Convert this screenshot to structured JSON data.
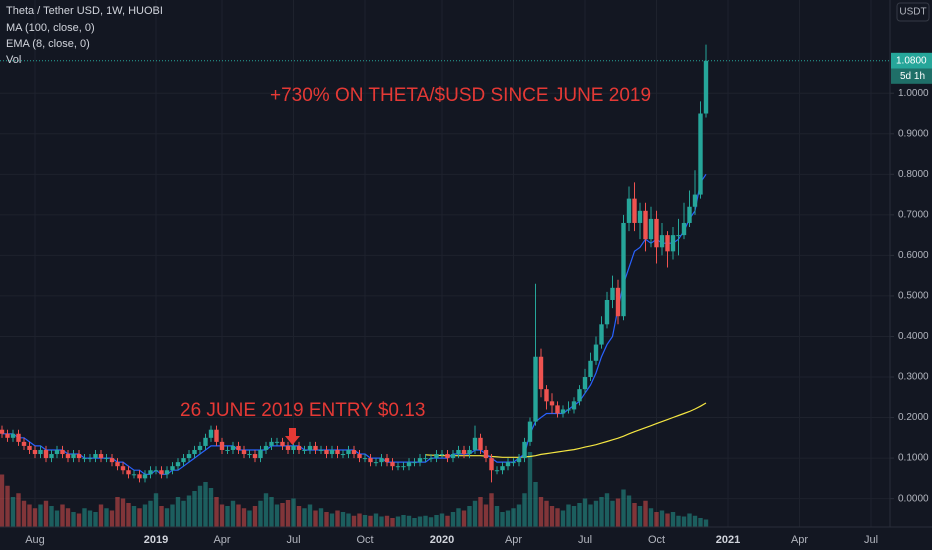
{
  "chart_data": {
    "type": "candlestick",
    "title": "Theta / Tether USD, 1W, HUOBI",
    "currency": "USDT",
    "annotations": [
      "+730% ON THETA/$USD SINCE JUNE 2019",
      "26 JUNE 2019 ENTRY $0.13"
    ],
    "last_price": {
      "value": 1.08,
      "label": "1.0800"
    },
    "countdown": "5d 1h",
    "up_color": "#26a69a",
    "down_color": "#ef5350",
    "grid": true,
    "ylim": [
      -0.07,
      1.23
    ],
    "yticks": [
      {
        "value": 0,
        "label": "0.0000"
      },
      {
        "value": 0.1,
        "label": "0.1000"
      },
      {
        "value": 0.2,
        "label": "0.2000"
      },
      {
        "value": 0.3,
        "label": "0.3000"
      },
      {
        "value": 0.4,
        "label": "0.4000"
      },
      {
        "value": 0.5,
        "label": "0.5000"
      },
      {
        "value": 0.6,
        "label": "0.6000"
      },
      {
        "value": 0.7,
        "label": "0.7000"
      },
      {
        "value": 0.8,
        "label": "0.8000"
      },
      {
        "value": 0.9,
        "label": "0.9000"
      },
      {
        "value": 1.0,
        "label": "1.0000"
      }
    ],
    "xticks": [
      {
        "value": 6,
        "label": "Aug"
      },
      {
        "value": 28,
        "label": "2019"
      },
      {
        "value": 40,
        "label": "Apr"
      },
      {
        "value": 53,
        "label": "Jul"
      },
      {
        "value": 66,
        "label": "Oct"
      },
      {
        "value": 80,
        "label": "2020"
      },
      {
        "value": 93,
        "label": "Apr"
      },
      {
        "value": 106,
        "label": "Jul"
      },
      {
        "value": 119,
        "label": "Oct"
      },
      {
        "value": 132,
        "label": "2021"
      },
      {
        "value": 145,
        "label": "Apr"
      },
      {
        "value": 158,
        "label": "Jul"
      }
    ],
    "ohlc": {
      "open": [
        0.17,
        0.16,
        0.15,
        0.16,
        0.14,
        0.13,
        0.12,
        0.11,
        0.12,
        0.1,
        0.11,
        0.12,
        0.11,
        0.1,
        0.11,
        0.1,
        0.1,
        0.1,
        0.11,
        0.1,
        0.1,
        0.09,
        0.08,
        0.07,
        0.06,
        0.06,
        0.05,
        0.06,
        0.07,
        0.07,
        0.06,
        0.07,
        0.08,
        0.09,
        0.1,
        0.11,
        0.12,
        0.13,
        0.15,
        0.17,
        0.14,
        0.12,
        0.12,
        0.13,
        0.12,
        0.11,
        0.11,
        0.1,
        0.12,
        0.13,
        0.14,
        0.14,
        0.13,
        0.12,
        0.13,
        0.12,
        0.12,
        0.13,
        0.12,
        0.12,
        0.11,
        0.12,
        0.11,
        0.11,
        0.12,
        0.11,
        0.1,
        0.1,
        0.09,
        0.09,
        0.1,
        0.09,
        0.08,
        0.08,
        0.08,
        0.09,
        0.09,
        0.1,
        0.1,
        0.1,
        0.11,
        0.11,
        0.1,
        0.11,
        0.12,
        0.11,
        0.12,
        0.15,
        0.12,
        0.1,
        0.07,
        0.07,
        0.08,
        0.09,
        0.09,
        0.1,
        0.14,
        0.19,
        0.35,
        0.27,
        0.24,
        0.23,
        0.21,
        0.22,
        0.22,
        0.24,
        0.27,
        0.3,
        0.34,
        0.38,
        0.43,
        0.49,
        0.52,
        0.45,
        0.68,
        0.74,
        0.68,
        0.71,
        0.64,
        0.69,
        0.62,
        0.65,
        0.61,
        0.65,
        0.65,
        0.68,
        0.72,
        0.75,
        0.95
      ],
      "high": [
        0.18,
        0.17,
        0.17,
        0.17,
        0.15,
        0.14,
        0.13,
        0.13,
        0.13,
        0.12,
        0.13,
        0.13,
        0.12,
        0.12,
        0.12,
        0.11,
        0.11,
        0.12,
        0.12,
        0.11,
        0.11,
        0.1,
        0.09,
        0.08,
        0.07,
        0.07,
        0.07,
        0.08,
        0.08,
        0.08,
        0.08,
        0.09,
        0.1,
        0.11,
        0.12,
        0.13,
        0.14,
        0.16,
        0.18,
        0.18,
        0.15,
        0.13,
        0.14,
        0.14,
        0.13,
        0.12,
        0.12,
        0.13,
        0.14,
        0.15,
        0.15,
        0.15,
        0.14,
        0.14,
        0.14,
        0.13,
        0.14,
        0.14,
        0.13,
        0.13,
        0.13,
        0.13,
        0.12,
        0.13,
        0.13,
        0.12,
        0.11,
        0.11,
        0.1,
        0.11,
        0.11,
        0.1,
        0.09,
        0.09,
        0.1,
        0.1,
        0.11,
        0.11,
        0.11,
        0.12,
        0.12,
        0.12,
        0.12,
        0.13,
        0.13,
        0.13,
        0.18,
        0.16,
        0.13,
        0.11,
        0.08,
        0.09,
        0.1,
        0.1,
        0.11,
        0.15,
        0.2,
        0.53,
        0.37,
        0.28,
        0.26,
        0.24,
        0.23,
        0.24,
        0.25,
        0.28,
        0.32,
        0.36,
        0.4,
        0.45,
        0.51,
        0.55,
        0.54,
        0.7,
        0.77,
        0.78,
        0.73,
        0.73,
        0.72,
        0.71,
        0.68,
        0.66,
        0.67,
        0.69,
        0.73,
        0.76,
        0.81,
        0.98,
        1.12
      ],
      "low": [
        0.15,
        0.14,
        0.14,
        0.13,
        0.12,
        0.11,
        0.1,
        0.1,
        0.09,
        0.09,
        0.1,
        0.1,
        0.09,
        0.09,
        0.09,
        0.09,
        0.09,
        0.09,
        0.09,
        0.09,
        0.08,
        0.07,
        0.06,
        0.05,
        0.05,
        0.04,
        0.04,
        0.05,
        0.06,
        0.05,
        0.05,
        0.06,
        0.07,
        0.08,
        0.09,
        0.1,
        0.11,
        0.12,
        0.14,
        0.13,
        0.11,
        0.11,
        0.11,
        0.11,
        0.1,
        0.1,
        0.09,
        0.09,
        0.11,
        0.12,
        0.13,
        0.12,
        0.11,
        0.11,
        0.11,
        0.11,
        0.11,
        0.11,
        0.11,
        0.1,
        0.1,
        0.1,
        0.1,
        0.1,
        0.1,
        0.09,
        0.09,
        0.08,
        0.08,
        0.08,
        0.08,
        0.07,
        0.07,
        0.07,
        0.07,
        0.08,
        0.08,
        0.09,
        0.09,
        0.09,
        0.1,
        0.09,
        0.09,
        0.1,
        0.1,
        0.1,
        0.11,
        0.11,
        0.09,
        0.04,
        0.06,
        0.06,
        0.07,
        0.08,
        0.08,
        0.09,
        0.13,
        0.18,
        0.25,
        0.22,
        0.21,
        0.2,
        0.2,
        0.21,
        0.21,
        0.23,
        0.26,
        0.29,
        0.33,
        0.37,
        0.42,
        0.47,
        0.43,
        0.44,
        0.66,
        0.66,
        0.64,
        0.61,
        0.62,
        0.58,
        0.6,
        0.57,
        0.59,
        0.6,
        0.64,
        0.67,
        0.7,
        0.74,
        0.94
      ],
      "close": [
        0.16,
        0.15,
        0.16,
        0.14,
        0.13,
        0.12,
        0.11,
        0.12,
        0.1,
        0.11,
        0.12,
        0.11,
        0.1,
        0.11,
        0.1,
        0.1,
        0.1,
        0.11,
        0.1,
        0.1,
        0.09,
        0.08,
        0.07,
        0.06,
        0.06,
        0.05,
        0.06,
        0.07,
        0.07,
        0.06,
        0.07,
        0.08,
        0.09,
        0.1,
        0.11,
        0.12,
        0.13,
        0.15,
        0.17,
        0.14,
        0.12,
        0.12,
        0.13,
        0.12,
        0.11,
        0.11,
        0.1,
        0.12,
        0.13,
        0.14,
        0.14,
        0.13,
        0.12,
        0.13,
        0.12,
        0.12,
        0.13,
        0.12,
        0.12,
        0.11,
        0.12,
        0.11,
        0.11,
        0.12,
        0.11,
        0.1,
        0.1,
        0.09,
        0.09,
        0.1,
        0.09,
        0.08,
        0.08,
        0.08,
        0.09,
        0.09,
        0.1,
        0.1,
        0.1,
        0.11,
        0.11,
        0.1,
        0.11,
        0.12,
        0.11,
        0.12,
        0.15,
        0.12,
        0.1,
        0.07,
        0.07,
        0.08,
        0.09,
        0.09,
        0.1,
        0.14,
        0.19,
        0.35,
        0.27,
        0.24,
        0.23,
        0.21,
        0.22,
        0.22,
        0.24,
        0.27,
        0.3,
        0.34,
        0.38,
        0.43,
        0.49,
        0.52,
        0.45,
        0.68,
        0.74,
        0.68,
        0.71,
        0.64,
        0.69,
        0.62,
        0.65,
        0.61,
        0.65,
        0.65,
        0.68,
        0.72,
        0.75,
        0.95,
        1.08
      ]
    },
    "volume": {
      "name": "Vol",
      "values": [
        70,
        55,
        40,
        45,
        35,
        30,
        25,
        30,
        35,
        28,
        22,
        30,
        25,
        20,
        18,
        25,
        22,
        20,
        30,
        25,
        22,
        40,
        38,
        32,
        28,
        25,
        30,
        35,
        45,
        28,
        25,
        30,
        40,
        35,
        42,
        48,
        55,
        60,
        52,
        40,
        30,
        28,
        35,
        30,
        25,
        22,
        28,
        35,
        45,
        40,
        30,
        32,
        36,
        38,
        28,
        25,
        30,
        22,
        25,
        20,
        18,
        22,
        20,
        18,
        15,
        18,
        16,
        15,
        18,
        14,
        15,
        12,
        14,
        16,
        15,
        12,
        14,
        15,
        13,
        16,
        18,
        15,
        20,
        25,
        22,
        28,
        35,
        40,
        30,
        45,
        28,
        20,
        22,
        25,
        30,
        45,
        100,
        60,
        40,
        35,
        28,
        25,
        22,
        30,
        28,
        32,
        38,
        30,
        35,
        40,
        45,
        35,
        38,
        50,
        42,
        32,
        28,
        35,
        25,
        20,
        22,
        18,
        20,
        15,
        14,
        18,
        15,
        12,
        10
      ]
    },
    "indicators": [
      {
        "name": "MA (100, close, 0)",
        "color": "#f5e642",
        "values": [
          null,
          null,
          null,
          null,
          null,
          null,
          null,
          null,
          null,
          null,
          null,
          null,
          null,
          null,
          null,
          null,
          null,
          null,
          null,
          null,
          null,
          null,
          null,
          null,
          null,
          null,
          null,
          null,
          null,
          null,
          null,
          null,
          null,
          null,
          null,
          null,
          null,
          null,
          null,
          null,
          null,
          null,
          null,
          null,
          null,
          null,
          null,
          null,
          null,
          null,
          null,
          null,
          null,
          null,
          null,
          null,
          null,
          null,
          null,
          null,
          null,
          null,
          null,
          null,
          null,
          null,
          null,
          null,
          null,
          null,
          null,
          null,
          null,
          null,
          null,
          null,
          null,
          0.108,
          0.107,
          0.107,
          0.106,
          0.106,
          0.106,
          0.106,
          0.106,
          0.106,
          0.106,
          0.106,
          0.105,
          0.104,
          0.103,
          0.102,
          0.102,
          0.102,
          0.102,
          0.103,
          0.104,
          0.106,
          0.109,
          0.111,
          0.113,
          0.115,
          0.117,
          0.119,
          0.121,
          0.124,
          0.127,
          0.13,
          0.133,
          0.137,
          0.141,
          0.145,
          0.149,
          0.154,
          0.16,
          0.165,
          0.17,
          0.175,
          0.18,
          0.185,
          0.19,
          0.195,
          0.2,
          0.205,
          0.21,
          0.215,
          0.221,
          0.228,
          0.236
        ]
      },
      {
        "name": "EMA (8, close, 0)",
        "color": "#2962ff",
        "values": [
          0.16,
          0.16,
          0.16,
          0.15,
          0.15,
          0.14,
          0.13,
          0.13,
          0.12,
          0.12,
          0.12,
          0.12,
          0.11,
          0.11,
          0.11,
          0.1,
          0.1,
          0.1,
          0.1,
          0.1,
          0.1,
          0.09,
          0.09,
          0.08,
          0.07,
          0.07,
          0.06,
          0.06,
          0.07,
          0.06,
          0.06,
          0.07,
          0.07,
          0.08,
          0.09,
          0.1,
          0.11,
          0.12,
          0.13,
          0.13,
          0.13,
          0.13,
          0.13,
          0.12,
          0.12,
          0.12,
          0.12,
          0.12,
          0.12,
          0.13,
          0.13,
          0.13,
          0.13,
          0.13,
          0.13,
          0.12,
          0.12,
          0.12,
          0.12,
          0.12,
          0.12,
          0.12,
          0.12,
          0.12,
          0.12,
          0.11,
          0.11,
          0.1,
          0.1,
          0.1,
          0.09,
          0.09,
          0.09,
          0.09,
          0.09,
          0.09,
          0.09,
          0.09,
          0.1,
          0.1,
          0.1,
          0.1,
          0.11,
          0.11,
          0.11,
          0.11,
          0.12,
          0.12,
          0.11,
          0.1,
          0.09,
          0.09,
          0.09,
          0.09,
          0.1,
          0.11,
          0.16,
          0.19,
          0.2,
          0.21,
          0.21,
          0.21,
          0.21,
          0.22,
          0.23,
          0.24,
          0.26,
          0.28,
          0.31,
          0.35,
          0.38,
          0.4,
          0.47,
          0.53,
          0.57,
          0.61,
          0.62,
          0.64,
          0.63,
          0.64,
          0.63,
          0.63,
          0.63,
          0.64,
          0.66,
          0.69,
          0.71,
          0.78,
          0.8
        ]
      }
    ]
  }
}
